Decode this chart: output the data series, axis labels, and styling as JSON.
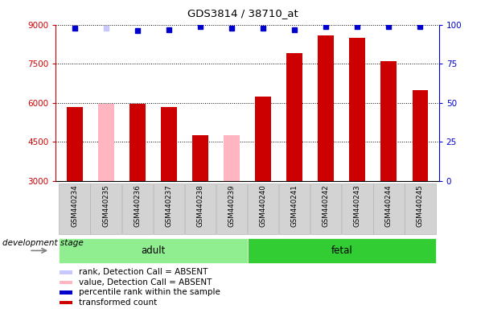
{
  "title": "GDS3814 / 38710_at",
  "samples": [
    "GSM440234",
    "GSM440235",
    "GSM440236",
    "GSM440237",
    "GSM440238",
    "GSM440239",
    "GSM440240",
    "GSM440241",
    "GSM440242",
    "GSM440243",
    "GSM440244",
    "GSM440245"
  ],
  "bar_values": [
    5850,
    5950,
    5950,
    5850,
    4750,
    4750,
    6250,
    7900,
    8600,
    8500,
    7600,
    6500
  ],
  "bar_colors": [
    "#cc0000",
    "#ffb6c1",
    "#cc0000",
    "#cc0000",
    "#cc0000",
    "#ffb6c1",
    "#cc0000",
    "#cc0000",
    "#cc0000",
    "#cc0000",
    "#cc0000",
    "#cc0000"
  ],
  "rank_values": [
    98,
    98,
    96,
    97,
    99,
    98,
    98,
    97,
    99,
    99,
    99,
    99
  ],
  "rank_colors": [
    "#0000cc",
    "#c8c8ff",
    "#0000cc",
    "#0000cc",
    "#0000cc",
    "#0000cc",
    "#0000cc",
    "#0000cc",
    "#0000cc",
    "#0000cc",
    "#0000cc",
    "#0000cc"
  ],
  "ylim_left": [
    3000,
    9000
  ],
  "ylim_right": [
    0,
    100
  ],
  "yticks_left": [
    3000,
    4500,
    6000,
    7500,
    9000
  ],
  "yticks_right": [
    0,
    25,
    50,
    75,
    100
  ],
  "bar_bottom": 3000,
  "groups": [
    {
      "label": "adult",
      "start": 0,
      "end": 6,
      "color": "#90ee90"
    },
    {
      "label": "fetal",
      "start": 6,
      "end": 12,
      "color": "#32cd32"
    }
  ],
  "group_label": "development stage",
  "legend_items": [
    {
      "label": "transformed count",
      "color": "#cc0000"
    },
    {
      "label": "percentile rank within the sample",
      "color": "#0000cc"
    },
    {
      "label": "value, Detection Call = ABSENT",
      "color": "#ffb6c1"
    },
    {
      "label": "rank, Detection Call = ABSENT",
      "color": "#c8c8ff"
    }
  ],
  "left_axis_color": "#cc0000",
  "right_axis_color": "#0000cc",
  "bar_width": 0.5,
  "rank_marker_size": 5,
  "fig_width": 6.03,
  "fig_height": 3.84,
  "dpi": 100
}
